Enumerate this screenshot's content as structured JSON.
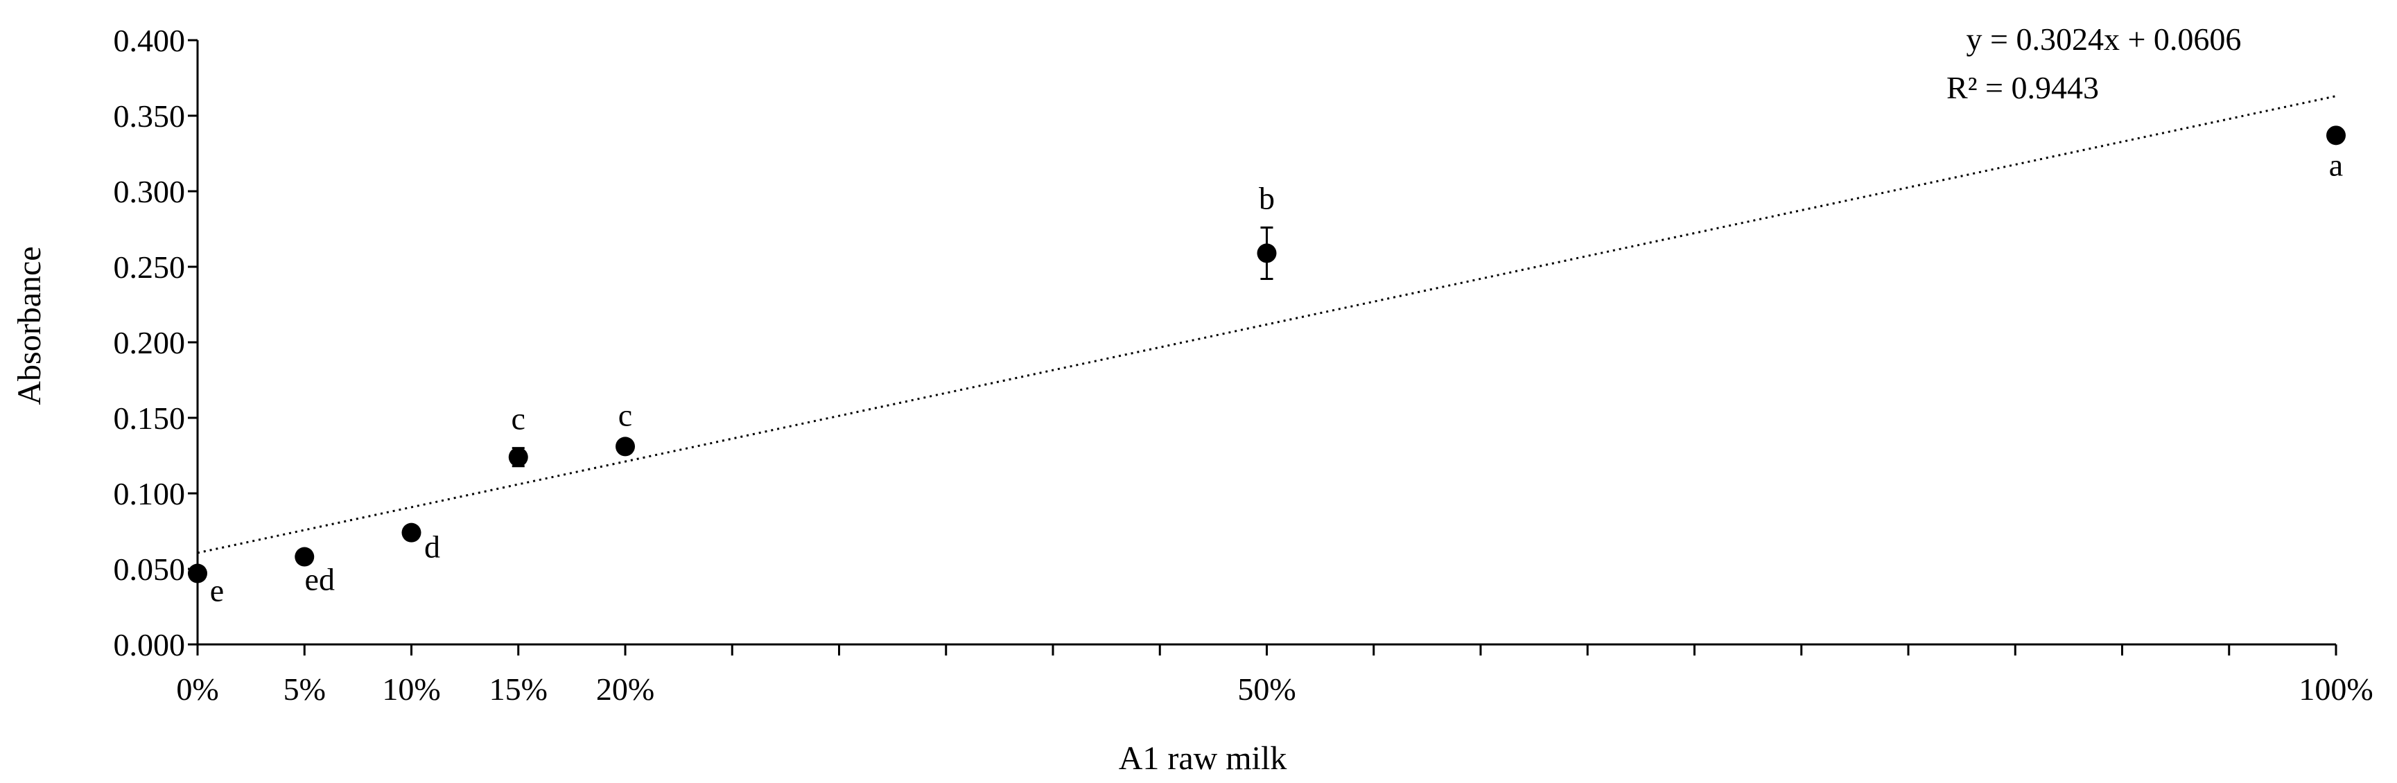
{
  "chart_data": {
    "type": "scatter",
    "xlabel": "A1 raw milk",
    "ylabel": "Absorbance",
    "ylim": [
      0,
      0.4
    ],
    "yticks": [
      "0.000",
      "0.050",
      "0.100",
      "0.150",
      "0.200",
      "0.250",
      "0.300",
      "0.350",
      "0.400"
    ],
    "xlim": [
      0,
      1
    ],
    "x_tick_labels": [
      {
        "x": 0,
        "label": "0%"
      },
      {
        "x": 0.05,
        "label": "5%"
      },
      {
        "x": 0.1,
        "label": "10%"
      },
      {
        "x": 0.15,
        "label": "15%"
      },
      {
        "x": 0.2,
        "label": "20%"
      },
      {
        "x": 0.5,
        "label": "50%"
      },
      {
        "x": 1.0,
        "label": "100%"
      }
    ],
    "points": [
      {
        "x": 0.0,
        "y": 0.047,
        "err": 0.003,
        "letter": "e"
      },
      {
        "x": 0.05,
        "y": 0.058,
        "err": 0.003,
        "letter": "ed"
      },
      {
        "x": 0.1,
        "y": 0.074,
        "err": 0.003,
        "letter": "d"
      },
      {
        "x": 0.15,
        "y": 0.124,
        "err": 0.006,
        "letter": "c"
      },
      {
        "x": 0.2,
        "y": 0.131,
        "err": 0.004,
        "letter": "c"
      },
      {
        "x": 0.5,
        "y": 0.259,
        "err": 0.017,
        "letter": "b"
      },
      {
        "x": 1.0,
        "y": 0.337,
        "err": 0.003,
        "letter": "a"
      }
    ],
    "trendline": {
      "slope": 0.3024,
      "intercept": 0.0606,
      "equation": "y = 0.3024x + 0.0606",
      "r2": "R² = 0.9443",
      "style": "dotted"
    },
    "grid": false,
    "legend": "none"
  }
}
